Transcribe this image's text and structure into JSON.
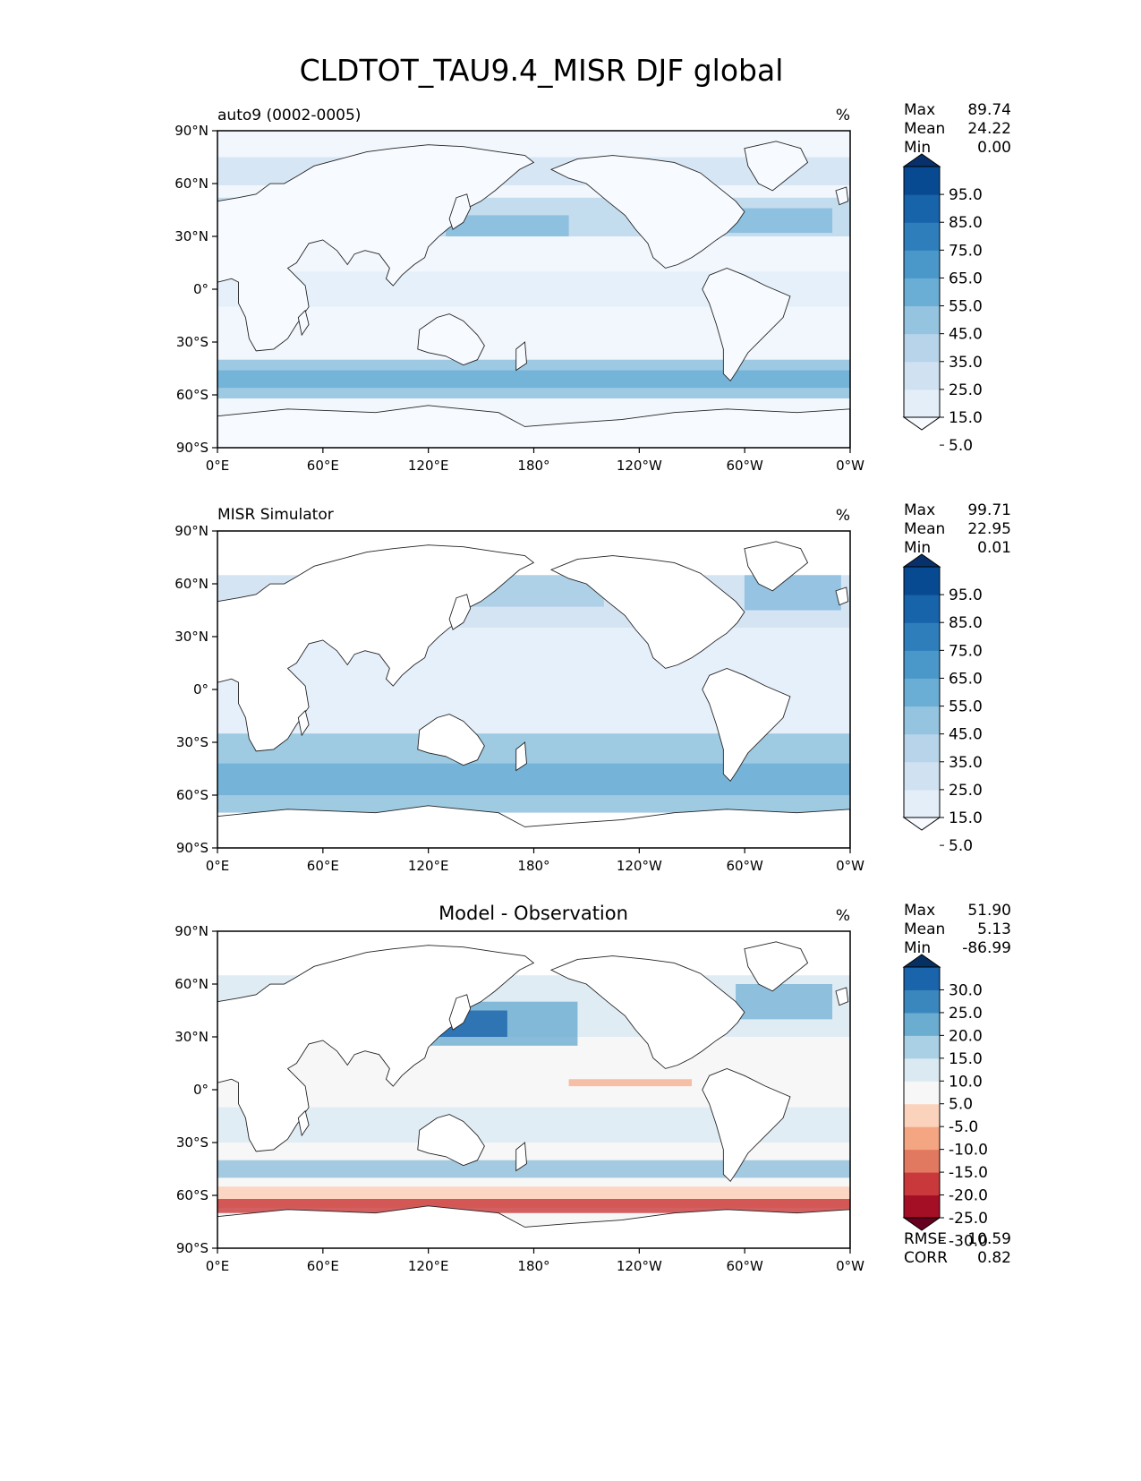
{
  "title": "CLDTOT_TAU9.4_MISR DJF global",
  "x_ticks": [
    "0°E",
    "60°E",
    "120°E",
    "180°",
    "120°W",
    "60°W",
    "0°W"
  ],
  "y_ticks": [
    "90°N",
    "60°N",
    "30°N",
    "0°",
    "30°S",
    "60°S",
    "90°S"
  ],
  "stats_labels": {
    "max": "Max",
    "mean": "Mean",
    "min": "Min",
    "rmse": "RMSE",
    "corr": "CORR"
  },
  "panels": [
    {
      "left_title": "auto9 (0002-0005)",
      "center_title": "",
      "units": "%",
      "stats": {
        "max": "89.74",
        "mean": "24.22",
        "min": "0.00"
      },
      "colorbar": {
        "labels": [
          "95.0",
          "85.0",
          "75.0",
          "65.0",
          "55.0",
          "45.0",
          "35.0",
          "25.0",
          "15.0",
          "5.0"
        ],
        "colors": [
          "#f7fbff",
          "#e3eef9",
          "#d0e1f2",
          "#b7d4ea",
          "#94c4df",
          "#6aaed6",
          "#4a98c9",
          "#2e7ebc",
          "#1764ab",
          "#084a91",
          "#08306b"
        ]
      }
    },
    {
      "left_title": "MISR Simulator",
      "center_title": "",
      "units": "%",
      "stats": {
        "max": "99.71",
        "mean": "22.95",
        "min": "0.01"
      },
      "colorbar": {
        "labels": [
          "95.0",
          "85.0",
          "75.0",
          "65.0",
          "55.0",
          "45.0",
          "35.0",
          "25.0",
          "15.0",
          "5.0"
        ],
        "colors": [
          "#f7fbff",
          "#e3eef9",
          "#d0e1f2",
          "#b7d4ea",
          "#94c4df",
          "#6aaed6",
          "#4a98c9",
          "#2e7ebc",
          "#1764ab",
          "#084a91",
          "#08306b"
        ]
      }
    },
    {
      "left_title": "",
      "center_title": "Model - Observation",
      "units": "%",
      "stats": {
        "max": "51.90",
        "mean": "5.13",
        "min": "-86.99",
        "rmse": "10.59",
        "corr": "0.82"
      },
      "colorbar": {
        "labels": [
          "30.0",
          "25.0",
          "20.0",
          "15.0",
          "10.0",
          "5.0",
          "-5.0",
          "-10.0",
          "-15.0",
          "-20.0",
          "-25.0",
          "-30.0"
        ],
        "colors": [
          "#67001f",
          "#a50f26",
          "#c9383a",
          "#e17860",
          "#f4a582",
          "#fbd2bc",
          "#f7f7f7",
          "#dbeaf2",
          "#aad0e5",
          "#6bacd1",
          "#3a87bd",
          "#1a64ab",
          "#053061"
        ]
      }
    }
  ],
  "chart_data": [
    {
      "type": "heatmap",
      "title": "auto9 (0002-0005)",
      "units": "%",
      "x_ticks": [
        "0°E",
        "60°E",
        "120°E",
        "180°",
        "120°W",
        "60°W",
        "0°W"
      ],
      "y_ticks": [
        "90°N",
        "60°N",
        "30°N",
        "0°",
        "30°S",
        "60°S",
        "90°S"
      ],
      "levels": [
        5,
        15,
        25,
        35,
        45,
        55,
        65,
        75,
        85,
        95
      ],
      "stats": {
        "max": 89.74,
        "mean": 24.22,
        "min": 0.0
      }
    },
    {
      "type": "heatmap",
      "title": "MISR Simulator",
      "units": "%",
      "x_ticks": [
        "0°E",
        "60°E",
        "120°E",
        "180°",
        "120°W",
        "60°W",
        "0°W"
      ],
      "y_ticks": [
        "90°N",
        "60°N",
        "30°N",
        "0°",
        "30°S",
        "60°S",
        "90°S"
      ],
      "levels": [
        5,
        15,
        25,
        35,
        45,
        55,
        65,
        75,
        85,
        95
      ],
      "stats": {
        "max": 99.71,
        "mean": 22.95,
        "min": 0.01
      }
    },
    {
      "type": "heatmap",
      "title": "Model - Observation",
      "units": "%",
      "x_ticks": [
        "0°E",
        "60°E",
        "120°E",
        "180°",
        "120°W",
        "60°W",
        "0°W"
      ],
      "y_ticks": [
        "90°N",
        "60°N",
        "30°N",
        "0°",
        "30°S",
        "60°S",
        "90°S"
      ],
      "levels": [
        -30,
        -25,
        -20,
        -15,
        -10,
        -5,
        5,
        10,
        15,
        20,
        25,
        30
      ],
      "stats": {
        "max": 51.9,
        "mean": 5.13,
        "min": -86.99,
        "rmse": 10.59,
        "corr": 0.82
      }
    }
  ]
}
